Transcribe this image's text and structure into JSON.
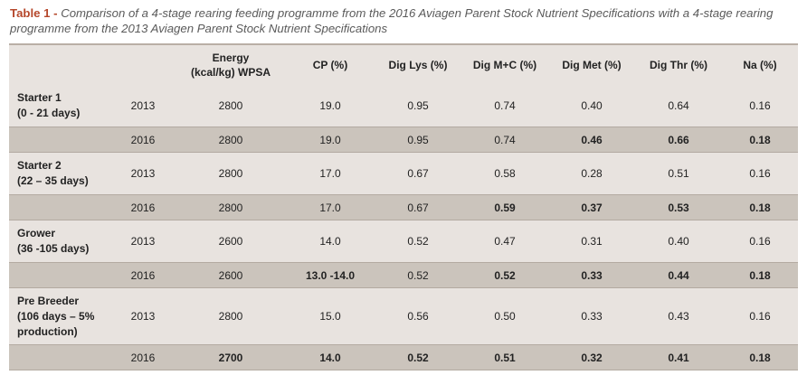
{
  "caption": {
    "label": "Table 1 -",
    "text": "Comparison of a 4-stage rearing feeding programme from the 2016 Aviagen Parent Stock Nutrient Specifications with a 4-stage rearing programme from the 2013 Aviagen Parent Stock Nutrient Specifications"
  },
  "headers": {
    "energy_line1": "Energy",
    "energy_line2": "(kcal/kg) WPSA",
    "cp": "CP (%)",
    "lys": "Dig Lys (%)",
    "mc": "Dig M+C (%)",
    "met": "Dig Met (%)",
    "thr": "Dig Thr (%)",
    "na": "Na (%)"
  },
  "stages": [
    {
      "name_line1": "Starter 1",
      "name_line2": "(0 - 21 days)",
      "r2013": {
        "year": "2013",
        "energy": "2800",
        "cp": "19.0",
        "lys": "0.95",
        "mc": "0.74",
        "met": "0.40",
        "thr": "0.64",
        "na": "0.16"
      },
      "r2016": {
        "year": "2016",
        "energy": "2800",
        "cp": "19.0",
        "lys": "0.95",
        "mc": "0.74",
        "met": "0.46",
        "thr": "0.66",
        "na": "0.18"
      }
    },
    {
      "name_line1": "Starter 2",
      "name_line2": "(22 – 35 days)",
      "r2013": {
        "year": "2013",
        "energy": "2800",
        "cp": "17.0",
        "lys": "0.67",
        "mc": "0.58",
        "met": "0.28",
        "thr": "0.51",
        "na": "0.16"
      },
      "r2016": {
        "year": "2016",
        "energy": "2800",
        "cp": "17.0",
        "lys": "0.67",
        "mc": "0.59",
        "met": "0.37",
        "thr": "0.53",
        "na": "0.18"
      }
    },
    {
      "name_line1": "Grower",
      "name_line2": "(36 -105 days)",
      "r2013": {
        "year": "2013",
        "energy": "2600",
        "cp": "14.0",
        "lys": "0.52",
        "mc": "0.47",
        "met": "0.31",
        "thr": "0.40",
        "na": "0.16"
      },
      "r2016": {
        "year": "2016",
        "energy": "2600",
        "cp": "13.0 -14.0",
        "lys": "0.52",
        "mc": "0.52",
        "met": "0.33",
        "thr": "0.44",
        "na": "0.18"
      }
    },
    {
      "name_line1": "Pre Breeder",
      "name_line2": "(106 days – 5%",
      "name_line3": "production)",
      "r2013": {
        "year": "2013",
        "energy": "2800",
        "cp": "15.0",
        "lys": "0.56",
        "mc": "0.50",
        "met": "0.33",
        "thr": "0.43",
        "na": "0.16"
      },
      "r2016": {
        "year": "2016",
        "energy": "2700",
        "cp": "14.0",
        "lys": "0.52",
        "mc": "0.51",
        "met": "0.32",
        "thr": "0.41",
        "na": "0.18"
      }
    }
  ]
}
